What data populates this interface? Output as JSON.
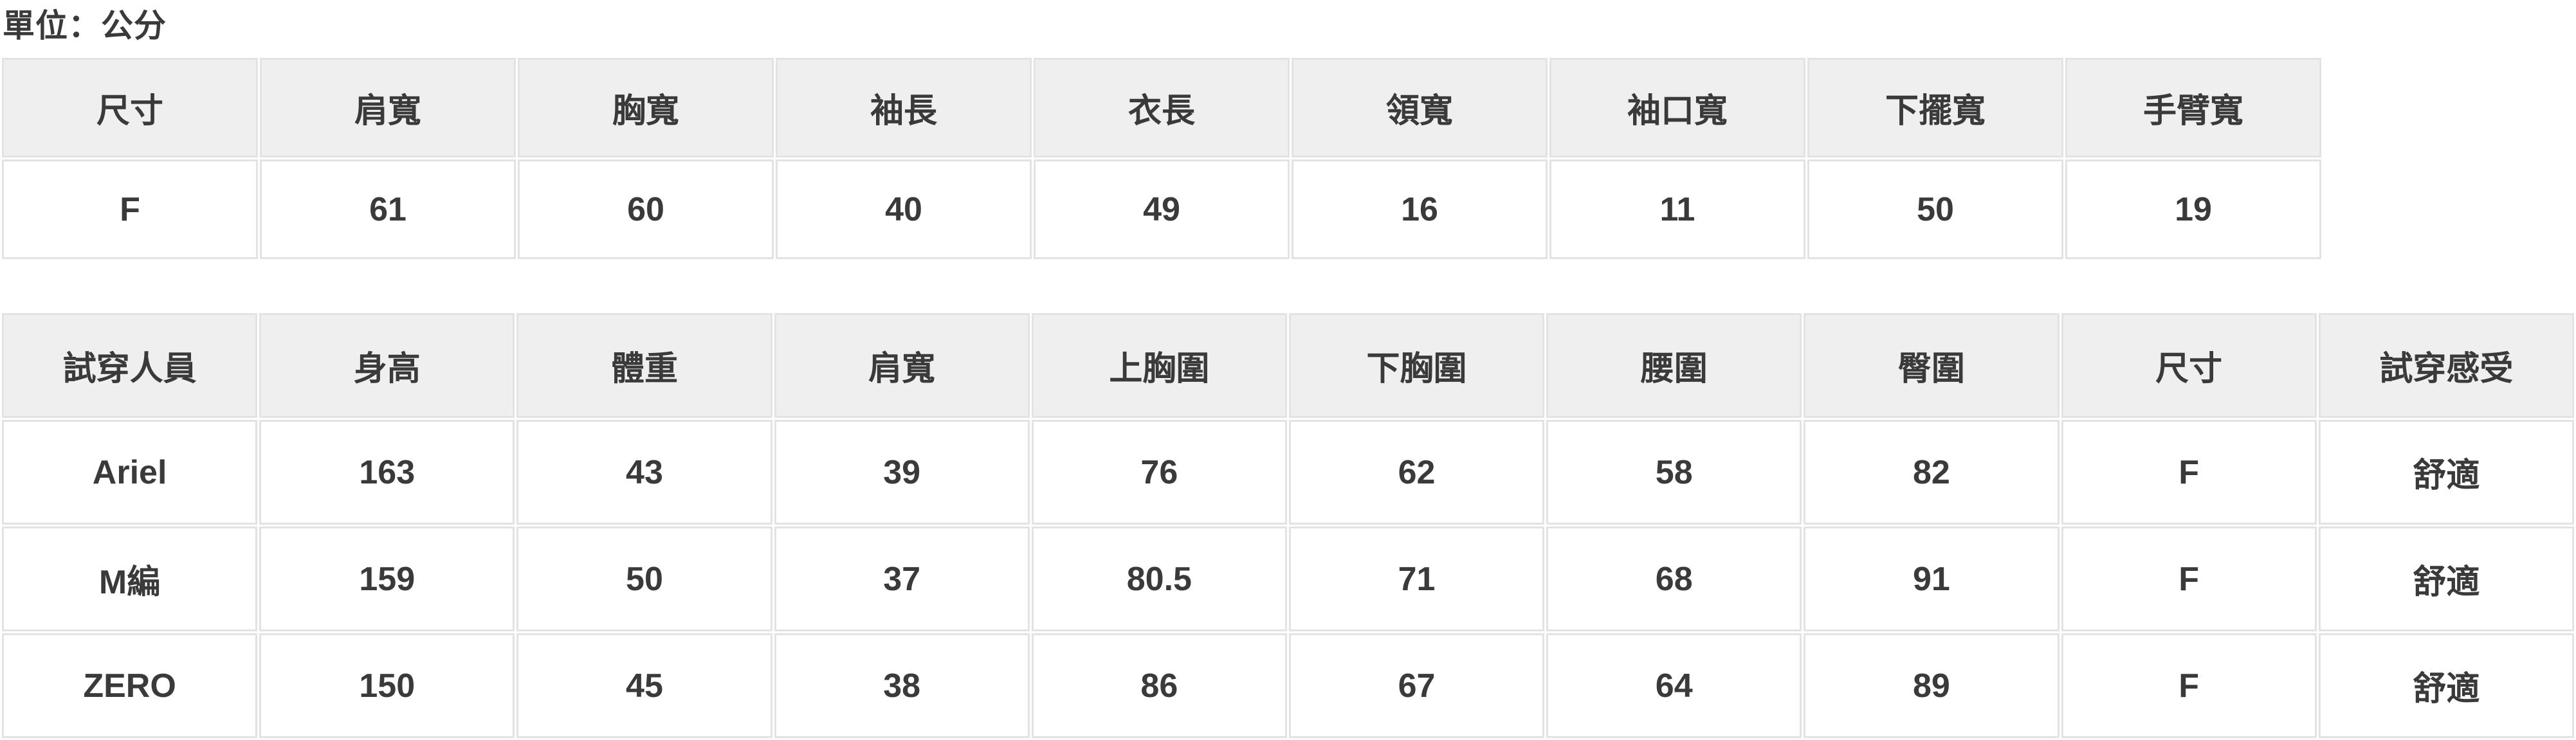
{
  "page": {
    "unit_label": "單位：公分"
  },
  "size_table": {
    "headers": [
      "尺寸",
      "肩寬",
      "胸寬",
      "袖長",
      "衣長",
      "領寬",
      "袖口寬",
      "下擺寬",
      "手臂寬"
    ],
    "rows": [
      [
        "F",
        "61",
        "60",
        "40",
        "49",
        "16",
        "11",
        "50",
        "19"
      ]
    ]
  },
  "fit_table": {
    "headers": [
      "試穿人員",
      "身高",
      "體重",
      "肩寬",
      "上胸圍",
      "下胸圍",
      "腰圍",
      "臀圍",
      "尺寸",
      "試穿感受"
    ],
    "rows": [
      [
        "Ariel",
        "163",
        "43",
        "39",
        "76",
        "62",
        "58",
        "82",
        "F",
        "舒適"
      ],
      [
        "M編",
        "159",
        "50",
        "37",
        "80.5",
        "71",
        "68",
        "91",
        "F",
        "舒適"
      ],
      [
        "ZERO",
        "150",
        "45",
        "38",
        "86",
        "67",
        "64",
        "89",
        "F",
        "舒適"
      ]
    ]
  },
  "colors": {
    "header_bg": "#efefef",
    "cell_border": "#e3e3e3",
    "text": "#3a3a3a",
    "page_bg": "#ffffff"
  }
}
